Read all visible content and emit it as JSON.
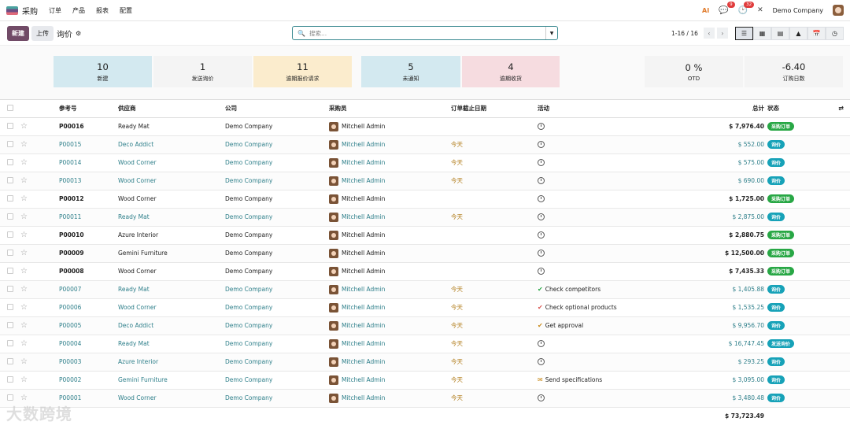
{
  "navbar": {
    "app_name": "采购",
    "menu": [
      "订单",
      "产品",
      "报表",
      "配置"
    ],
    "messages_count": "9",
    "activities_count": "32",
    "company": "Demo Company"
  },
  "control": {
    "new_label": "新建",
    "upload_label": "上传",
    "title": "询价",
    "search_placeholder": "搜索...",
    "pager": "1-16 / 16"
  },
  "stats": [
    {
      "num": "10",
      "label": "新建",
      "bg": "#d3e9f0"
    },
    {
      "num": "1",
      "label": "发送询价",
      "bg": "#f4f4f4"
    },
    {
      "num": "11",
      "label": "逾期报价请求",
      "bg": "#fbeccd"
    },
    {
      "num": "5",
      "label": "未通知",
      "bg": "#d3e9f0"
    },
    {
      "num": "4",
      "label": "逾期收货",
      "bg": "#f6dce0"
    },
    {
      "num": "0 %",
      "label": "OTD",
      "bg": "#f4f4f4"
    },
    {
      "num": "-6.40",
      "label": "订购日数",
      "bg": "#f4f4f4"
    }
  ],
  "columns": [
    "参考号",
    "供应商",
    "公司",
    "采购员",
    "订单截止日期",
    "活动",
    "总计",
    "状态"
  ],
  "rows": [
    {
      "ref": "P00016",
      "vendor": "Ready Mat",
      "company": "Demo Company",
      "buyer": "Mitchell Admin",
      "deadline": "",
      "activity": "",
      "total": "$ 7,976.40",
      "status": "采购订单",
      "kind": "po"
    },
    {
      "ref": "P00015",
      "vendor": "Deco Addict",
      "company": "Demo Company",
      "buyer": "Mitchell Admin",
      "deadline": "今天",
      "activity": "",
      "total": "$ 552.00",
      "status": "询价",
      "kind": "rfq"
    },
    {
      "ref": "P00014",
      "vendor": "Wood Corner",
      "company": "Demo Company",
      "buyer": "Mitchell Admin",
      "deadline": "今天",
      "activity": "",
      "total": "$ 575.00",
      "status": "询价",
      "kind": "rfq"
    },
    {
      "ref": "P00013",
      "vendor": "Wood Corner",
      "company": "Demo Company",
      "buyer": "Mitchell Admin",
      "deadline": "今天",
      "activity": "",
      "total": "$ 690.00",
      "status": "询价",
      "kind": "rfq"
    },
    {
      "ref": "P00012",
      "vendor": "Wood Corner",
      "company": "Demo Company",
      "buyer": "Mitchell Admin",
      "deadline": "",
      "activity": "",
      "total": "$ 1,725.00",
      "status": "采购订单",
      "kind": "po"
    },
    {
      "ref": "P00011",
      "vendor": "Ready Mat",
      "company": "Demo Company",
      "buyer": "Mitchell Admin",
      "deadline": "今天",
      "activity": "",
      "total": "$ 2,875.00",
      "status": "询价",
      "kind": "rfq"
    },
    {
      "ref": "P00010",
      "vendor": "Azure Interior",
      "company": "Demo Company",
      "buyer": "Mitchell Admin",
      "deadline": "",
      "activity": "",
      "total": "$ 2,880.75",
      "status": "采购订单",
      "kind": "po"
    },
    {
      "ref": "P00009",
      "vendor": "Gemini Furniture",
      "company": "Demo Company",
      "buyer": "Mitchell Admin",
      "deadline": "",
      "activity": "",
      "total": "$ 12,500.00",
      "status": "采购订单",
      "kind": "po"
    },
    {
      "ref": "P00008",
      "vendor": "Wood Corner",
      "company": "Demo Company",
      "buyer": "Mitchell Admin",
      "deadline": "",
      "activity": "",
      "total": "$ 7,435.33",
      "status": "采购订单",
      "kind": "po"
    },
    {
      "ref": "P00007",
      "vendor": "Ready Mat",
      "company": "Demo Company",
      "buyer": "Mitchell Admin",
      "deadline": "今天",
      "activity": "Check competitors",
      "total": "$ 1,405.88",
      "status": "询价",
      "kind": "rfq"
    },
    {
      "ref": "P00006",
      "vendor": "Wood Corner",
      "company": "Demo Company",
      "buyer": "Mitchell Admin",
      "deadline": "今天",
      "activity": "Check optional products",
      "total": "$ 1,535.25",
      "status": "询价",
      "kind": "rfq"
    },
    {
      "ref": "P00005",
      "vendor": "Deco Addict",
      "company": "Demo Company",
      "buyer": "Mitchell Admin",
      "deadline": "今天",
      "activity": "Get approval",
      "total": "$ 9,956.70",
      "status": "询价",
      "kind": "rfq"
    },
    {
      "ref": "P00004",
      "vendor": "Ready Mat",
      "company": "Demo Company",
      "buyer": "Mitchell Admin",
      "deadline": "今天",
      "activity": "",
      "total": "$ 16,747.45",
      "status": "发送询价",
      "kind": "sent"
    },
    {
      "ref": "P00003",
      "vendor": "Azure Interior",
      "company": "Demo Company",
      "buyer": "Mitchell Admin",
      "deadline": "今天",
      "activity": "",
      "total": "$ 293.25",
      "status": "询价",
      "kind": "rfq"
    },
    {
      "ref": "P00002",
      "vendor": "Gemini Furniture",
      "company": "Demo Company",
      "buyer": "Mitchell Admin",
      "deadline": "今天",
      "activity": "Send specifications",
      "total": "$ 3,095.00",
      "status": "询价",
      "kind": "rfq"
    },
    {
      "ref": "P00001",
      "vendor": "Wood Corner",
      "company": "Demo Company",
      "buyer": "Mitchell Admin",
      "deadline": "今天",
      "activity": "",
      "total": "$ 3,480.48",
      "status": "询价",
      "kind": "rfq"
    }
  ],
  "grand_total": "$ 73,723.49",
  "colors": {
    "po": "#28a745",
    "rfq": "#17a2b8",
    "sent": "#17a2b8",
    "primary": "#714b67"
  },
  "watermark": "大数跨境"
}
